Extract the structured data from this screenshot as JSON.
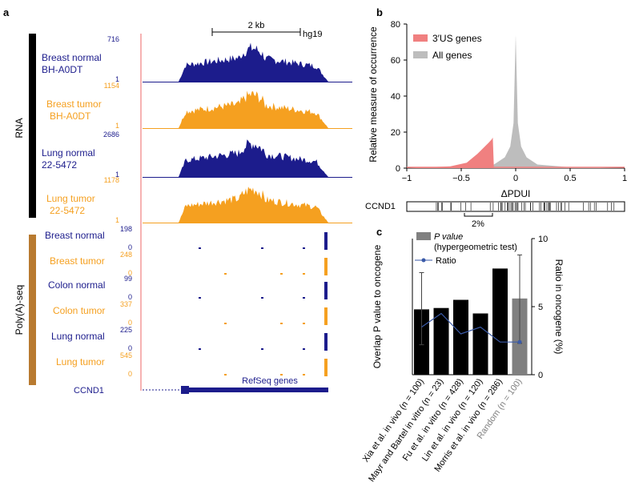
{
  "panel_a": {
    "label": "a",
    "scale_text": "2 kb",
    "genome": "hg19",
    "group_rna": "RNA",
    "group_polya": "Poly(A)-seq",
    "rna_tracks": [
      {
        "name1": "Breast normal",
        "name2": "BH-A0DT",
        "max": "716",
        "min": "1",
        "color": "#1c1c8c"
      },
      {
        "name1": "Breast tumor",
        "name2": "BH-A0DT",
        "max": "1154",
        "min": "1",
        "color": "#f5a020"
      },
      {
        "name1": "Lung normal",
        "name2": "22-5472",
        "max": "2686",
        "min": "1",
        "color": "#1c1c8c"
      },
      {
        "name1": "Lung tumor",
        "name2": "22-5472",
        "max": "1178",
        "min": "1",
        "color": "#f5a020"
      }
    ],
    "polya_tracks": [
      {
        "name": "Breast normal",
        "max": "198",
        "min": "0",
        "color": "#1c1c8c"
      },
      {
        "name": "Breast tumor",
        "max": "248",
        "min": "0",
        "color": "#f5a020"
      },
      {
        "name": "Colon normal",
        "max": "99",
        "min": "0",
        "color": "#1c1c8c"
      },
      {
        "name": "Colon tumor",
        "max": "337",
        "min": "0",
        "color": "#f5a020"
      },
      {
        "name": "Lung normal",
        "max": "225",
        "min": "0",
        "color": "#1c1c8c"
      },
      {
        "name": "Lung tumor",
        "max": "545",
        "min": "0",
        "color": "#f5a020"
      }
    ],
    "gene_label": "CCND1",
    "refseq_label": "RefSeq genes"
  },
  "panel_b": {
    "label": "b",
    "ylabel": "Relative measure of occurrence",
    "xlabel": "ΔPDUI",
    "yticks": [
      "0",
      "20",
      "40",
      "60",
      "80"
    ],
    "xticks": [
      "−1",
      "−0.5",
      "0",
      "0.5",
      "1"
    ],
    "legend": [
      {
        "label": "3′US genes",
        "color": "#f08080"
      },
      {
        "label": "All genes",
        "color": "#bdbdbd"
      }
    ],
    "strip_label": "CCND1",
    "strip_annotation": "2%"
  },
  "panel_c": {
    "label": "c",
    "ylabel_left": "Overlap P value to oncogene",
    "ylabel_right": "Ratio in oncogene (%)",
    "yticks_right": [
      "0",
      "5",
      "10"
    ],
    "legend_pvalue_line1": "P value",
    "legend_pvalue_line2": "(hypergeometric test)",
    "legend_ratio": "Ratio",
    "categories": [
      "Xia et al. in vivo (n = 100)",
      "Mayr and Bartel in vitro (n = 23)",
      "Fu et al. in vitro (n = 428)",
      "Lin et al. in vivo (n = 120)",
      "Morris et al. in vivo (n = 286)",
      "Random (n = 100)"
    ]
  },
  "chart_data": [
    {
      "type": "area",
      "panel": "b",
      "xlabel": "ΔPDUI",
      "ylabel": "Relative measure of occurrence",
      "xlim": [
        -1,
        1
      ],
      "ylim": [
        0,
        80
      ],
      "series": [
        {
          "name": "3′US genes",
          "x": [
            -1,
            -0.6,
            -0.45,
            -0.35,
            -0.3,
            -0.25,
            -0.22,
            -0.21,
            -0.2
          ],
          "values": [
            0,
            1,
            3,
            8,
            11,
            14,
            16,
            17,
            0
          ]
        },
        {
          "name": "All genes",
          "x": [
            -1,
            -0.5,
            -0.2,
            -0.1,
            -0.05,
            -0.02,
            0,
            0.02,
            0.05,
            0.1,
            0.2,
            0.5,
            1
          ],
          "values": [
            0,
            0.5,
            2,
            6,
            12,
            25,
            74,
            25,
            12,
            6,
            2,
            0.5,
            0
          ]
        }
      ]
    },
    {
      "type": "bar",
      "panel": "c",
      "categories": [
        "Xia et al. in vivo (n = 100)",
        "Mayr and Bartel in vitro (n = 23)",
        "Fu et al. in vitro (n = 428)",
        "Lin et al. in vivo (n = 120)",
        "Morris et al. in vivo (n = 286)",
        "Random (n = 100)"
      ],
      "bar_values_relative": [
        0.48,
        0.49,
        0.55,
        0.45,
        0.78,
        0.56
      ],
      "ratio_percent": [
        3.5,
        4.5,
        3.0,
        3.5,
        2.4,
        2.4
      ],
      "random_error_percent": [
        2.3,
        8.8
      ],
      "first_error_percent": [
        2.2,
        7.5
      ],
      "y_right_lim": [
        0,
        10
      ],
      "bar_colors": [
        "#000000",
        "#000000",
        "#000000",
        "#000000",
        "#000000",
        "#808080"
      ]
    }
  ]
}
